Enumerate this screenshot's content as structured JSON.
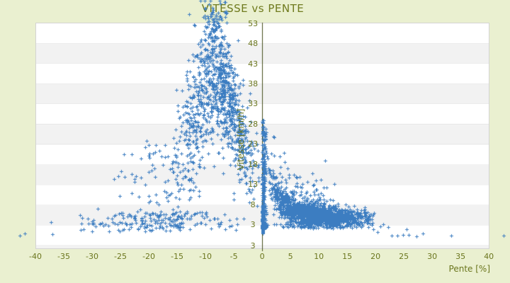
{
  "chart_data": {
    "type": "scatter",
    "title": "VITESSE vs PENTE",
    "xlabel": "Pente [%]",
    "ylabel": "Vitesse [km/h]",
    "x_ticks": [
      -40,
      -35,
      -30,
      -25,
      -20,
      -15,
      -10,
      -5,
      0,
      5,
      10,
      15,
      20,
      25,
      30,
      35,
      40
    ],
    "y_ticks": [
      53,
      48,
      43,
      38,
      33,
      28,
      23,
      18,
      13,
      8,
      3
    ],
    "y_axis_bottom_label": "3",
    "x_range": [
      -40,
      40.1
    ],
    "y_range": [
      -3.1,
      53.1
    ],
    "grid": "horizontal-stripes",
    "legend": "none",
    "marker": {
      "shape": "plus",
      "size": 5,
      "color": "#3c7dc1"
    },
    "seed": 1337,
    "point_clusters": [
      {
        "kind": "hyper",
        "n": 1700,
        "p": [
          0.4,
          9,
          19.8
        ],
        "sBase": 3.8,
        "sAmp": 14,
        "sC": 0.05,
        "noise0": 1.0,
        "noiseK": 3.4,
        "sMin": 2.0
      },
      {
        "kind": "strip",
        "n": 360,
        "p0": 0.03,
        "pSig": 0.28,
        "pMax": 0.95,
        "s": [
          2.2,
          29
        ],
        "pow": 2.2
      },
      {
        "kind": "band",
        "n": 130,
        "p": [
          0.02,
          0.08,
          0.2
        ],
        "s": [
          0.8,
          7.5
        ]
      },
      {
        "kind": "fan",
        "n": 980,
        "p": [
          -16.5,
          -7,
          -0.05
        ],
        "cBase": 12,
        "cAmp": 28,
        "cMu": 8.5,
        "cW": 30,
        "sig0": 3.8,
        "sigK": 0.55,
        "sigMax": 9,
        "sMin": 3,
        "sMax": 58.5
      },
      {
        "kind": "band",
        "n": 70,
        "p": [
          -27,
          -17,
          -12
        ],
        "s": [
          4,
          24
        ]
      },
      {
        "kind": "band",
        "n": 42,
        "p": [
          -11,
          -8.3,
          -5.6
        ],
        "s": [
          52,
          58.3
        ]
      },
      {
        "kind": "band",
        "n": 195,
        "p": [
          -36,
          -18,
          -1.5
        ],
        "s": [
          1.2,
          6.2
        ]
      },
      {
        "kind": "band",
        "n": 55,
        "p": [
          0.8,
          6,
          14.5
        ],
        "s": [
          2.2,
          3.4
        ]
      },
      {
        "kind": "halo",
        "n": 120,
        "p": [
          0.5,
          3.5,
          13
        ],
        "sBase": 3.8,
        "sAmp": 14,
        "sC": 0.05,
        "lift": 1.5,
        "sigma": 4.5
      }
    ],
    "outlier_points": [
      [
        -42.8,
        0.2
      ],
      [
        -41.9,
        0.8
      ],
      [
        -37.2,
        3.6
      ],
      [
        -37.0,
        0.6
      ],
      [
        -29,
        6.9
      ],
      [
        19.6,
        1.9
      ],
      [
        20.3,
        1.1
      ],
      [
        20.8,
        2.6
      ],
      [
        21.3,
        3.0
      ],
      [
        22.2,
        2.3
      ],
      [
        22.9,
        0.3
      ],
      [
        23.9,
        0.25
      ],
      [
        24.9,
        0.4
      ],
      [
        25.5,
        1.8
      ],
      [
        25.8,
        0.35
      ],
      [
        27.2,
        0.1
      ],
      [
        28.3,
        0.8
      ],
      [
        33.4,
        0.2
      ],
      [
        42.6,
        0.2
      ]
    ]
  },
  "colors": {
    "background": "#eaf0d0",
    "plot_background": "#ffffff",
    "stripe": "#f2f2f2",
    "plot_border": "#d3d3d3",
    "text": "#6b761e",
    "axis_line": "#454e1b",
    "marker": "#3c7dc1"
  }
}
